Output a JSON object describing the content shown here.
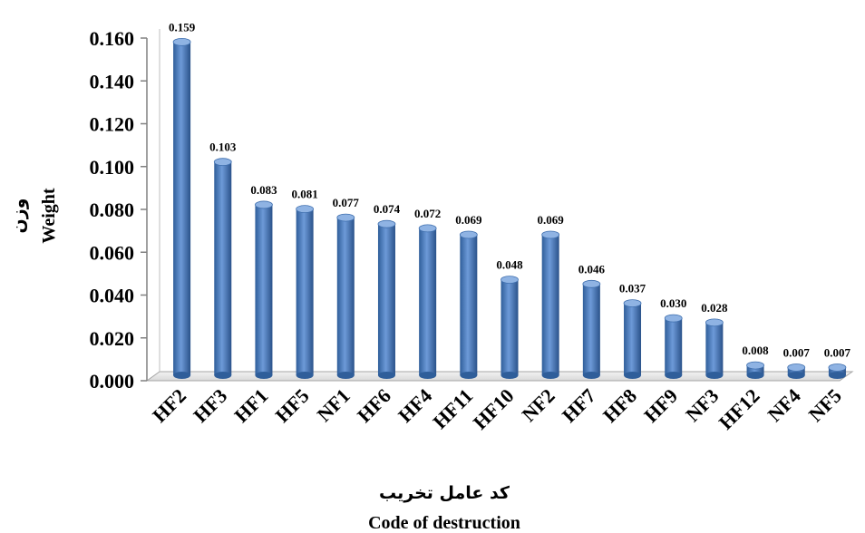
{
  "chart_data": {
    "type": "bar",
    "categories": [
      "HF2",
      "HF3",
      "HF1",
      "HF5",
      "NF1",
      "HF6",
      "HF4",
      "HF11",
      "HF10",
      "NF2",
      "HF7",
      "HF8",
      "HF9",
      "NF3",
      "HF12",
      "NF4",
      "NF5"
    ],
    "values": [
      0.159,
      0.103,
      0.083,
      0.081,
      0.077,
      0.074,
      0.072,
      0.069,
      0.048,
      0.069,
      0.046,
      0.037,
      0.03,
      0.028,
      0.008,
      0.007,
      0.007
    ],
    "value_labels": [
      "0.159",
      "0.103",
      "0.083",
      "0.081",
      "0.077",
      "0.074",
      "0.072",
      "0.069",
      "0.048",
      "0.069",
      "0.046",
      "0.037",
      "0.030",
      "0.028",
      "0.008",
      "0.007",
      "0.007"
    ],
    "yticks": [
      "0.000",
      "0.020",
      "0.040",
      "0.060",
      "0.080",
      "0.100",
      "0.120",
      "0.140",
      "0.160"
    ],
    "ylim": [
      0,
      0.16
    ],
    "ylabel_fa": "وزن",
    "ylabel": "Weight",
    "xlabel_fa": "کد عامل تخریب",
    "xlabel": "Code of destruction",
    "grid": false,
    "bar_color": "#4a7ebb"
  }
}
